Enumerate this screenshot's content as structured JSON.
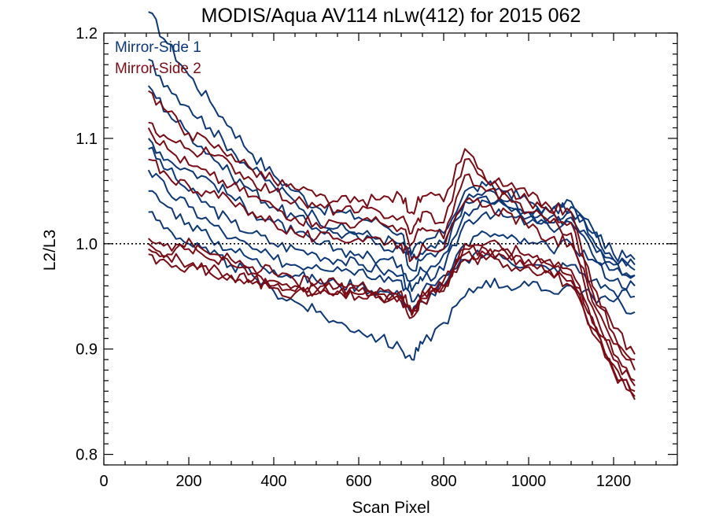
{
  "chart_data": {
    "type": "line",
    "title": "MODIS/Aqua AV114 nLw(412) for 2015 062",
    "xlabel": "Scan Pixel",
    "ylabel": "L2/L3",
    "xlim": [
      0,
      1350
    ],
    "ylim": [
      0.79,
      1.2
    ],
    "x_major_ticks": [
      0,
      200,
      400,
      600,
      800,
      1000,
      1200
    ],
    "x_tick_labels": [
      "0",
      "200",
      "400",
      "600",
      "800",
      "1000",
      "1200"
    ],
    "y_major_ticks": [
      0.8,
      0.9,
      1.0,
      1.1,
      1.2
    ],
    "y_tick_labels": [
      "0.8",
      "0.9",
      "1.0",
      "1.1",
      "1.2"
    ],
    "reference_line": 1.0,
    "legend_position": "top-left",
    "x": [
      105,
      150,
      200,
      250,
      300,
      350,
      400,
      450,
      500,
      550,
      600,
      650,
      700,
      725,
      750,
      800,
      850,
      900,
      950,
      1000,
      1050,
      1100,
      1150,
      1200,
      1250
    ],
    "series": [
      {
        "name": "Mirror-Side 1",
        "color": "#0d3878",
        "lines": [
          [
            1.22,
            1.19,
            1.16,
            1.135,
            1.11,
            1.085,
            1.065,
            1.05,
            1.035,
            1.03,
            1.025,
            1.02,
            1.01,
            0.99,
            1.0,
            1.01,
            1.05,
            1.055,
            1.05,
            1.04,
            1.03,
            1.035,
            1.015,
            0.99,
            0.985
          ],
          [
            1.175,
            1.15,
            1.13,
            1.11,
            1.09,
            1.07,
            1.055,
            1.04,
            1.025,
            1.015,
            1.01,
            1.005,
            1.0,
            0.985,
            0.99,
            1.0,
            1.04,
            1.05,
            1.04,
            1.03,
            1.025,
            1.03,
            1.01,
            0.985,
            0.98
          ],
          [
            1.15,
            1.125,
            1.105,
            1.085,
            1.065,
            1.05,
            1.035,
            1.025,
            1.015,
            1.01,
            1.005,
            1.0,
            0.995,
            0.975,
            0.985,
            0.995,
            1.04,
            1.045,
            1.035,
            1.03,
            1.03,
            1.04,
            1.005,
            0.985,
            0.975
          ],
          [
            1.1,
            1.08,
            1.07,
            1.06,
            1.045,
            1.03,
            1.02,
            1.01,
            1.0,
            0.995,
            0.99,
            0.985,
            0.98,
            0.965,
            0.975,
            0.99,
            1.03,
            1.04,
            1.035,
            1.025,
            1.02,
            1.025,
            1.0,
            0.98,
            0.97
          ],
          [
            1.09,
            1.07,
            1.05,
            1.035,
            1.02,
            1.01,
            1.0,
            0.995,
            0.99,
            0.985,
            0.98,
            0.975,
            0.97,
            0.955,
            0.965,
            0.975,
            1.02,
            1.03,
            1.025,
            1.02,
            1.015,
            1.02,
            0.99,
            0.975,
            0.97
          ],
          [
            1.07,
            1.05,
            1.035,
            1.02,
            1.005,
            0.995,
            0.985,
            0.98,
            0.98,
            0.978,
            0.975,
            0.97,
            0.965,
            0.945,
            0.955,
            0.97,
            1.0,
            1.01,
            1.005,
            1.0,
            0.995,
            1.0,
            0.985,
            0.965,
            0.96
          ],
          [
            1.05,
            1.035,
            1.02,
            1.005,
            0.995,
            0.985,
            0.975,
            0.97,
            0.965,
            0.962,
            0.96,
            0.955,
            0.95,
            0.935,
            0.945,
            0.96,
            0.985,
            0.99,
            0.985,
            0.98,
            0.975,
            0.98,
            0.965,
            0.955,
            0.95
          ],
          [
            1.03,
            1.015,
            1.0,
            0.99,
            0.98,
            0.97,
            0.955,
            0.945,
            0.935,
            0.925,
            0.918,
            0.91,
            0.9,
            0.89,
            0.905,
            0.925,
            0.95,
            0.965,
            0.96,
            0.96,
            0.955,
            0.96,
            0.95,
            0.945,
            0.935
          ]
        ]
      },
      {
        "name": "Mirror-Side 2",
        "color": "#7a0c15",
        "lines": [
          [
            1.145,
            1.125,
            1.105,
            1.095,
            1.085,
            1.07,
            1.06,
            1.052,
            1.045,
            1.04,
            1.04,
            1.042,
            1.045,
            1.03,
            1.045,
            1.04,
            1.09,
            1.06,
            1.055,
            1.045,
            1.035,
            1.03,
            0.96,
            0.92,
            0.895
          ],
          [
            1.115,
            1.1,
            1.09,
            1.085,
            1.075,
            1.06,
            1.05,
            1.04,
            1.035,
            1.032,
            1.03,
            1.03,
            1.025,
            1.01,
            1.03,
            1.02,
            1.08,
            1.06,
            1.05,
            1.04,
            1.03,
            1.02,
            0.955,
            0.915,
            0.89
          ],
          [
            1.11,
            1.09,
            1.075,
            1.065,
            1.055,
            1.045,
            1.035,
            1.025,
            1.02,
            1.02,
            1.02,
            1.02,
            1.015,
            1.0,
            1.015,
            1.005,
            1.065,
            1.05,
            1.045,
            1.03,
            1.02,
            1.01,
            0.945,
            0.905,
            0.88
          ],
          [
            1.08,
            1.065,
            1.055,
            1.048,
            1.04,
            1.03,
            1.02,
            1.01,
            1.005,
            1.005,
            1.005,
            1.005,
            1.0,
            0.985,
            1.0,
            0.995,
            1.04,
            1.035,
            1.03,
            1.015,
            1.005,
            1.0,
            0.94,
            0.895,
            0.87
          ],
          [
            1.005,
            1.0,
            0.995,
            0.99,
            0.985,
            0.978,
            0.972,
            0.965,
            0.962,
            0.962,
            0.96,
            0.958,
            0.955,
            0.935,
            0.955,
            0.955,
            1.0,
            1.0,
            0.995,
            0.99,
            0.985,
            0.975,
            0.93,
            0.89,
            0.865
          ],
          [
            1.0,
            0.99,
            1.005,
            0.985,
            0.98,
            0.972,
            0.965,
            0.96,
            0.958,
            0.958,
            0.955,
            0.952,
            0.95,
            0.93,
            0.95,
            0.96,
            0.995,
            0.995,
            0.99,
            0.985,
            0.98,
            0.97,
            0.925,
            0.885,
            0.86
          ],
          [
            0.995,
            0.988,
            0.98,
            0.975,
            0.97,
            0.965,
            0.96,
            0.955,
            0.955,
            0.955,
            0.952,
            0.95,
            0.948,
            0.935,
            0.948,
            0.965,
            0.99,
            0.99,
            0.985,
            0.98,
            0.975,
            0.965,
            0.92,
            0.88,
            0.855
          ],
          [
            0.99,
            0.982,
            0.978,
            0.972,
            0.968,
            0.962,
            0.958,
            0.953,
            0.952,
            0.952,
            0.95,
            0.948,
            0.945,
            0.932,
            0.945,
            0.96,
            0.985,
            0.985,
            0.98,
            0.978,
            0.972,
            0.96,
            0.915,
            0.878,
            0.852
          ]
        ]
      }
    ]
  }
}
